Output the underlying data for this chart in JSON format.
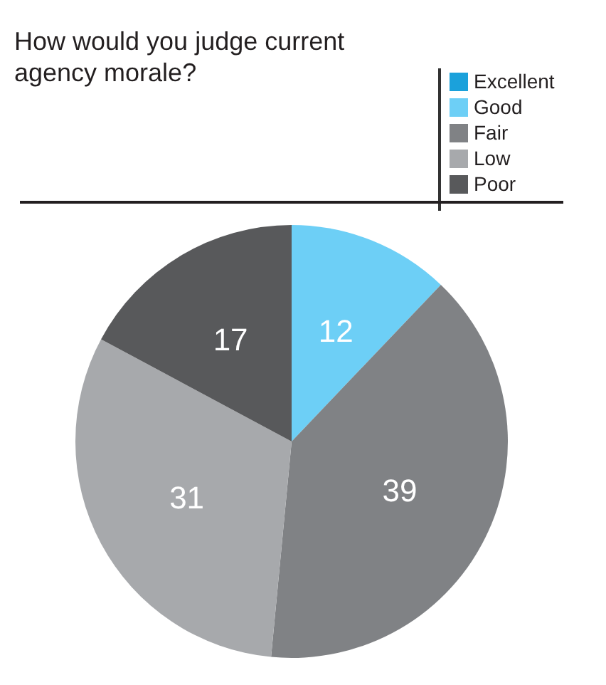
{
  "chart_data": {
    "type": "pie",
    "title": "How would you judge current agency morale?",
    "categories": [
      "Excellent",
      "Good",
      "Fair",
      "Low",
      "Poor"
    ],
    "values": [
      0,
      12,
      39,
      31,
      17
    ],
    "colors": [
      "#1ba1db",
      "#6dcff6",
      "#808285",
      "#a7a9ac",
      "#58595b"
    ],
    "value_labels": [
      null,
      "12",
      "39",
      "31",
      "17"
    ],
    "legend": "top right"
  }
}
